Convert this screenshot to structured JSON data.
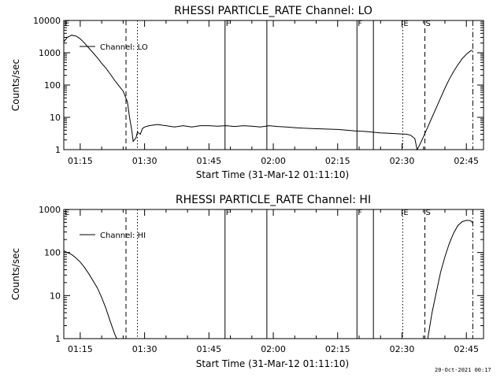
{
  "chart_data": [
    {
      "type": "line",
      "title": "RHESSI PARTICLE_RATE Channel: LO",
      "xlabel": "Start Time (31-Mar-12 01:11:10)",
      "ylabel": "Counts/sec",
      "x_unit": "minutes",
      "x_range": [
        "01:11:10",
        "02:49:00"
      ],
      "y_scale": "log",
      "ylim": [
        1,
        10000
      ],
      "x_ticks": [
        "01:15",
        "01:30",
        "01:45",
        "02:00",
        "02:15",
        "02:30",
        "02:45"
      ],
      "y_ticks": [
        "1",
        "10",
        "100",
        "1000",
        "10000"
      ],
      "legend": {
        "label": "Channel: LO",
        "position": "top-left"
      },
      "series": [
        {
          "name": "Channel: LO",
          "points": [
            [
              "01:11:10",
              2200
            ],
            [
              "01:12:00",
              3000
            ],
            [
              "01:13:00",
              3500
            ],
            [
              "01:14:00",
              3300
            ],
            [
              "01:15:00",
              2700
            ],
            [
              "01:16:00",
              2000
            ],
            [
              "01:17:00",
              1400
            ],
            [
              "01:18:00",
              1000
            ],
            [
              "01:19:00",
              700
            ],
            [
              "01:20:00",
              470
            ],
            [
              "01:21:00",
              330
            ],
            [
              "01:22:00",
              220
            ],
            [
              "01:23:00",
              140
            ],
            [
              "01:24:00",
              95
            ],
            [
              "01:25:00",
              65
            ],
            [
              "01:26:00",
              30
            ],
            [
              "01:26:30",
              10
            ],
            [
              "01:27:00",
              4
            ],
            [
              "01:27:20",
              1.8
            ],
            [
              "01:28:00",
              2.3
            ],
            [
              "01:28:20",
              3.5
            ],
            [
              "01:29:00",
              3
            ],
            [
              "01:29:30",
              4.5
            ],
            [
              "01:30:00",
              5
            ],
            [
              "01:31:00",
              5.5
            ],
            [
              "01:33:00",
              6
            ],
            [
              "01:35:00",
              5.5
            ],
            [
              "01:37:00",
              5
            ],
            [
              "01:39:00",
              5.5
            ],
            [
              "01:41:00",
              5
            ],
            [
              "01:43:00",
              5.5
            ],
            [
              "01:45:00",
              5.5
            ],
            [
              "01:47:00",
              5.3
            ],
            [
              "01:49:00",
              5.5
            ],
            [
              "01:51:00",
              5.2
            ],
            [
              "01:53:00",
              5.5
            ],
            [
              "01:55:00",
              5.3
            ],
            [
              "01:57:00",
              5
            ],
            [
              "01:59:00",
              5.5
            ],
            [
              "02:01:00",
              5.2
            ],
            [
              "02:03:00",
              5
            ],
            [
              "02:05:00",
              4.8
            ],
            [
              "02:07:00",
              4.6
            ],
            [
              "02:09:00",
              4.5
            ],
            [
              "02:11:00",
              4.4
            ],
            [
              "02:13:00",
              4.3
            ],
            [
              "02:15:00",
              4.2
            ],
            [
              "02:17:00",
              4
            ],
            [
              "02:19:00",
              3.8
            ],
            [
              "02:21:00",
              3.7
            ],
            [
              "02:23:00",
              3.5
            ],
            [
              "02:25:00",
              3.3
            ],
            [
              "02:27:00",
              3.2
            ],
            [
              "02:29:00",
              3.1
            ],
            [
              "02:31:00",
              3
            ],
            [
              "02:32:00",
              2.8
            ],
            [
              "02:33:00",
              2.2
            ],
            [
              "02:33:30",
              1
            ],
            [
              "02:34:00",
              1.3
            ],
            [
              "02:34:30",
              1.8
            ],
            [
              "02:35:00",
              2.5
            ],
            [
              "02:36:00",
              5
            ],
            [
              "02:37:00",
              10
            ],
            [
              "02:38:00",
              20
            ],
            [
              "02:39:00",
              40
            ],
            [
              "02:40:00",
              80
            ],
            [
              "02:41:00",
              150
            ],
            [
              "02:42:00",
              260
            ],
            [
              "02:43:00",
              420
            ],
            [
              "02:44:00",
              650
            ],
            [
              "02:45:00",
              900
            ],
            [
              "02:46:00",
              1150
            ],
            [
              "02:46:30",
              1200
            ]
          ]
        }
      ],
      "markers": [
        {
          "time": "01:25:40",
          "style": "dashed"
        },
        {
          "time": "01:28:20",
          "style": "dotted"
        },
        {
          "time": "01:48:45",
          "style": "solid",
          "label": "F"
        },
        {
          "time": "01:58:30",
          "style": "solid"
        },
        {
          "time": "02:19:30",
          "style": "solid",
          "label": "F"
        },
        {
          "time": "02:23:20",
          "style": "solid"
        },
        {
          "time": "02:30:10",
          "style": "dotted",
          "label": "E"
        },
        {
          "time": "02:35:20",
          "style": "dashed",
          "label": "S"
        },
        {
          "time": "02:46:30",
          "style": "dashdot"
        }
      ],
      "start_label": "E"
    },
    {
      "type": "line",
      "title": "RHESSI PARTICLE_RATE Channel: HI",
      "xlabel": "Start Time (31-Mar-12 01:11:10)",
      "ylabel": "Counts/sec",
      "x_unit": "minutes",
      "x_range": [
        "01:11:10",
        "02:49:00"
      ],
      "y_scale": "log",
      "ylim": [
        1,
        1000
      ],
      "x_ticks": [
        "01:15",
        "01:30",
        "01:45",
        "02:00",
        "02:15",
        "02:30",
        "02:45"
      ],
      "y_ticks": [
        "1",
        "10",
        "100",
        "1000"
      ],
      "legend": {
        "label": "Channel: HI",
        "position": "top-left"
      },
      "series": [
        {
          "name": "Channel: HI",
          "points": [
            [
              "01:11:10",
              110
            ],
            [
              "01:12:00",
              100
            ],
            [
              "01:13:00",
              90
            ],
            [
              "01:14:00",
              75
            ],
            [
              "01:15:00",
              60
            ],
            [
              "01:16:00",
              45
            ],
            [
              "01:17:00",
              32
            ],
            [
              "01:18:00",
              22
            ],
            [
              "01:19:00",
              15
            ],
            [
              "01:20:00",
              9
            ],
            [
              "01:21:00",
              5
            ],
            [
              "01:22:00",
              2.5
            ],
            [
              "01:23:00",
              1.3
            ],
            [
              "01:23:30",
              1
            ]
          ]
        },
        {
          "name": "Channel: HI",
          "points": [
            [
              "02:36:00",
              1
            ],
            [
              "02:36:30",
              2
            ],
            [
              "02:37:00",
              4
            ],
            [
              "02:38:00",
              12
            ],
            [
              "02:39:00",
              35
            ],
            [
              "02:40:00",
              80
            ],
            [
              "02:41:00",
              160
            ],
            [
              "02:42:00",
              280
            ],
            [
              "02:43:00",
              420
            ],
            [
              "02:44:00",
              520
            ],
            [
              "02:45:00",
              560
            ],
            [
              "02:46:00",
              550
            ],
            [
              "02:46:30",
              480
            ]
          ]
        }
      ],
      "markers": [
        {
          "time": "01:25:40",
          "style": "dashed"
        },
        {
          "time": "01:28:20",
          "style": "dotted"
        },
        {
          "time": "01:48:45",
          "style": "solid",
          "label": "F"
        },
        {
          "time": "01:58:30",
          "style": "solid"
        },
        {
          "time": "02:19:30",
          "style": "solid",
          "label": "F"
        },
        {
          "time": "02:23:20",
          "style": "solid"
        },
        {
          "time": "02:30:10",
          "style": "dotted",
          "label": "E"
        },
        {
          "time": "02:35:20",
          "style": "dashed",
          "label": "S"
        },
        {
          "time": "02:46:30",
          "style": "dashdot"
        }
      ],
      "start_label": "E"
    }
  ],
  "footer": {
    "timestamp": "20-Oct-2021 00:17"
  }
}
